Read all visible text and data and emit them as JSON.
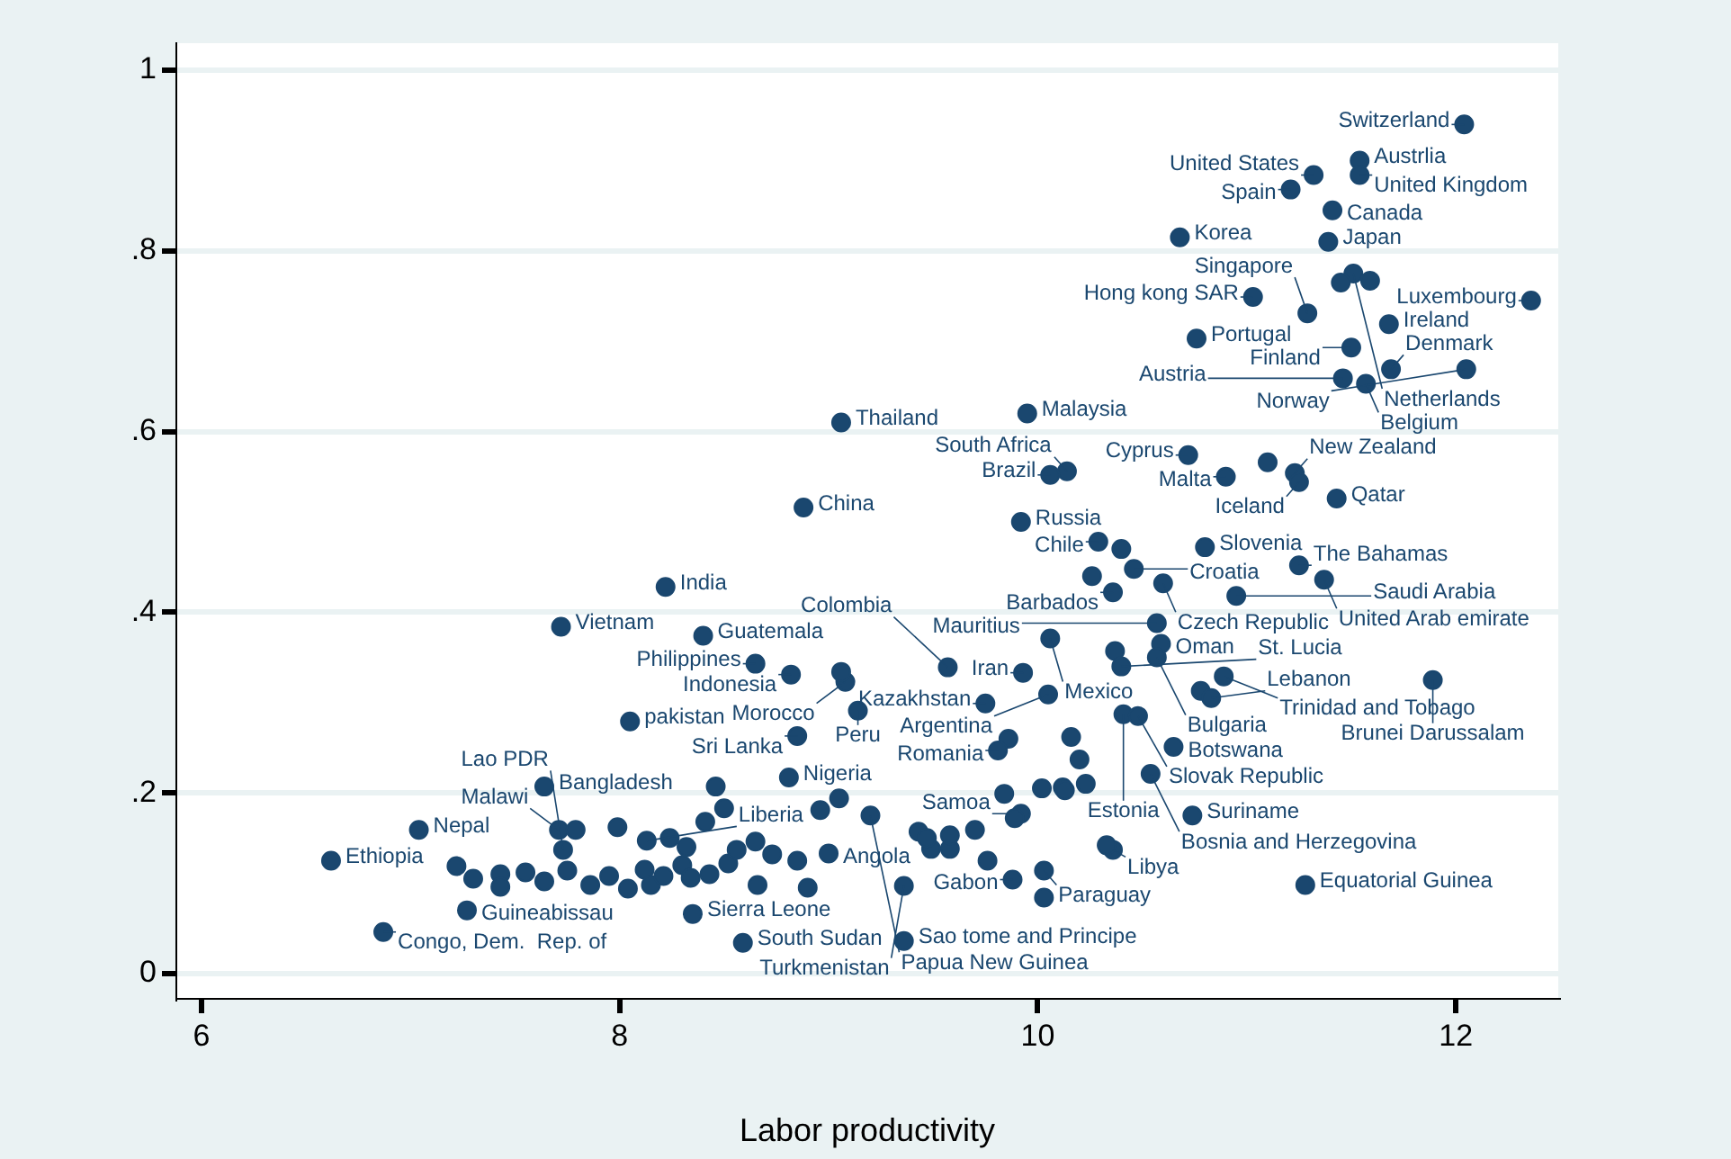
{
  "chart_data": {
    "type": "scatter",
    "xlabel": "Labor productivity",
    "marker": "circle",
    "grid": "y",
    "legend": false,
    "xlim": [
      5.88,
      12.49
    ],
    "ylim": [
      -0.028,
      1.03
    ],
    "xticks": [
      6,
      8,
      10,
      12
    ],
    "yticks": [
      0,
      {
        "value": 0.2,
        "label": ".2"
      },
      {
        "value": 0.4,
        "label": ".4"
      },
      {
        "value": 0.6,
        "label": ".6"
      },
      {
        "value": 0.8,
        "label": ".8"
      },
      1
    ],
    "series": [
      {
        "color": "#1a476f",
        "x": [
          12.04,
          11.54,
          11.32,
          11.54,
          11.21,
          11.41,
          10.68,
          11.39,
          11.51,
          11.45,
          11.59,
          11.03,
          11.29,
          11.68,
          12.36,
          10.76,
          11.5,
          11.69,
          12.05,
          11.46,
          11.57,
          9.95,
          9.06,
          8.88,
          10.72,
          11.1,
          11.23,
          11.25,
          10.9,
          10.14,
          10.06,
          11.43,
          9.92,
          8.22,
          7.72,
          8.4,
          10.29,
          10.4,
          10.8,
          10.46,
          10.26,
          10.36,
          10.6,
          10.95,
          11.25,
          11.37,
          10.57,
          10.59,
          10.06,
          10.37,
          10.57,
          10.4,
          10.89,
          11.89,
          10.78,
          10.83,
          10.05,
          9.93,
          9.57,
          10.41,
          10.48,
          9.75,
          9.86,
          9.81,
          10.16,
          10.65,
          10.54,
          10.74,
          10.36,
          10.03,
          9.88,
          11.28,
          9.36,
          8.59,
          8.35,
          7.27,
          6.87,
          6.62,
          7.04,
          7.64,
          8.46,
          8.81,
          8.05,
          8.85,
          9.14,
          8.65,
          8.82,
          9.08,
          9.06,
          8.5,
          7.71,
          7.79,
          8.13,
          7.73,
          9.0,
          9.2,
          9.7,
          9.92,
          9.36,
          8.9,
          7.3,
          7.22,
          7.43,
          7.43,
          7.55,
          7.64,
          7.75,
          7.86,
          7.95,
          8.04,
          8.12,
          8.15,
          8.21,
          8.3,
          8.34,
          8.43,
          8.52,
          8.56,
          8.66,
          8.73,
          8.85,
          8.32,
          8.24,
          7.99,
          8.41,
          8.65,
          8.96,
          9.05,
          9.43,
          9.58,
          9.76,
          9.84,
          10.02,
          10.12,
          10.2,
          10.23,
          10.13,
          10.33,
          9.58,
          9.89,
          10.03,
          9.49,
          9.47
        ],
        "values": [
          0.94,
          0.9,
          0.884,
          0.884,
          0.868,
          0.845,
          0.815,
          0.81,
          0.775,
          0.765,
          0.767,
          0.749,
          0.731,
          0.719,
          0.745,
          0.703,
          0.693,
          0.669,
          0.669,
          0.659,
          0.653,
          0.62,
          0.61,
          0.516,
          0.574,
          0.566,
          0.554,
          0.544,
          0.55,
          0.556,
          0.552,
          0.526,
          0.5,
          0.428,
          0.384,
          0.374,
          0.478,
          0.47,
          0.472,
          0.448,
          0.44,
          0.422,
          0.432,
          0.418,
          0.452,
          0.436,
          0.388,
          0.365,
          0.371,
          0.357,
          0.35,
          0.34,
          0.329,
          0.325,
          0.313,
          0.305,
          0.309,
          0.333,
          0.339,
          0.287,
          0.285,
          0.299,
          0.26,
          0.247,
          0.262,
          0.251,
          0.221,
          0.175,
          0.137,
          0.114,
          0.104,
          0.098,
          0.036,
          0.034,
          0.066,
          0.07,
          0.046,
          0.125,
          0.159,
          0.207,
          0.207,
          0.217,
          0.279,
          0.263,
          0.291,
          0.343,
          0.331,
          0.323,
          0.334,
          0.183,
          0.159,
          0.159,
          0.147,
          0.137,
          0.133,
          0.175,
          0.159,
          0.177,
          0.097,
          0.095,
          0.105,
          0.119,
          0.11,
          0.096,
          0.112,
          0.102,
          0.114,
          0.098,
          0.108,
          0.094,
          0.115,
          0.098,
          0.108,
          0.12,
          0.106,
          0.11,
          0.122,
          0.137,
          0.098,
          0.132,
          0.125,
          0.14,
          0.15,
          0.162,
          0.168,
          0.146,
          0.181,
          0.194,
          0.157,
          0.138,
          0.125,
          0.199,
          0.205,
          0.206,
          0.237,
          0.21,
          0.203,
          0.142,
          0.153,
          0.172,
          0.084,
          0.138,
          0.15
        ]
      }
    ],
    "annotations": [
      {
        "text": "Switzerland",
        "x": 12.04,
        "y": 0.94
      },
      {
        "text": "Austrlia",
        "x": 11.54,
        "y": 0.9
      },
      {
        "text": "United States",
        "x": 11.32,
        "y": 0.884
      },
      {
        "text": "United Kingdom",
        "x": 11.54,
        "y": 0.884
      },
      {
        "text": "Spain",
        "x": 11.21,
        "y": 0.868
      },
      {
        "text": "Canada",
        "x": 11.41,
        "y": 0.845
      },
      {
        "text": "Korea",
        "x": 10.68,
        "y": 0.815
      },
      {
        "text": "Japan",
        "x": 11.39,
        "y": 0.81
      },
      {
        "text": "Netherlands",
        "x": 11.51,
        "y": 0.775
      },
      {
        "text": "Hong kong SAR",
        "x": 11.03,
        "y": 0.749
      },
      {
        "text": "Singapore",
        "x": 11.29,
        "y": 0.731
      },
      {
        "text": "Ireland",
        "x": 11.68,
        "y": 0.719
      },
      {
        "text": "Luxembourg",
        "x": 12.36,
        "y": 0.745
      },
      {
        "text": "Portugal",
        "x": 10.76,
        "y": 0.703
      },
      {
        "text": "Finland",
        "x": 11.5,
        "y": 0.693
      },
      {
        "text": "Denmark",
        "x": 11.69,
        "y": 0.669
      },
      {
        "text": "Norway",
        "x": 12.05,
        "y": 0.669
      },
      {
        "text": "Austria",
        "x": 11.46,
        "y": 0.659
      },
      {
        "text": "Belgium",
        "x": 11.57,
        "y": 0.653
      },
      {
        "text": "Malaysia",
        "x": 9.95,
        "y": 0.62
      },
      {
        "text": "Thailand",
        "x": 9.06,
        "y": 0.61
      },
      {
        "text": "China",
        "x": 8.88,
        "y": 0.516
      },
      {
        "text": "Cyprus",
        "x": 10.72,
        "y": 0.574
      },
      {
        "text": "New Zealand",
        "x": 11.23,
        "y": 0.554
      },
      {
        "text": "Iceland",
        "x": 11.25,
        "y": 0.544
      },
      {
        "text": "Malta",
        "x": 10.9,
        "y": 0.55
      },
      {
        "text": "South Africa",
        "x": 10.14,
        "y": 0.556
      },
      {
        "text": "Brazil",
        "x": 10.06,
        "y": 0.552
      },
      {
        "text": "Qatar",
        "x": 11.43,
        "y": 0.526
      },
      {
        "text": "Russia",
        "x": 9.92,
        "y": 0.5
      },
      {
        "text": "India",
        "x": 8.22,
        "y": 0.428
      },
      {
        "text": "Vietnam",
        "x": 7.72,
        "y": 0.384
      },
      {
        "text": "Guatemala",
        "x": 8.4,
        "y": 0.374
      },
      {
        "text": "Chile",
        "x": 10.29,
        "y": 0.478
      },
      {
        "text": "Slovenia",
        "x": 10.8,
        "y": 0.472
      },
      {
        "text": "Croatia",
        "x": 10.46,
        "y": 0.448
      },
      {
        "text": "Barbados",
        "x": 10.36,
        "y": 0.422
      },
      {
        "text": "Czech Republic",
        "x": 10.6,
        "y": 0.432
      },
      {
        "text": "Saudi Arabia",
        "x": 10.95,
        "y": 0.418
      },
      {
        "text": "The Bahamas",
        "x": 11.25,
        "y": 0.452
      },
      {
        "text": "United Arab emirate",
        "x": 11.37,
        "y": 0.436
      },
      {
        "text": "Mauritius",
        "x": 10.57,
        "y": 0.388
      },
      {
        "text": "Oman",
        "x": 10.59,
        "y": 0.365
      },
      {
        "text": "Mexico",
        "x": 10.06,
        "y": 0.371
      },
      {
        "text": "Bulgaria",
        "x": 10.57,
        "y": 0.35
      },
      {
        "text": "St. Lucia",
        "x": 10.4,
        "y": 0.34
      },
      {
        "text": "Trinidad and Tobago",
        "x": 10.89,
        "y": 0.329
      },
      {
        "text": "Brunei Darussalam",
        "x": 11.89,
        "y": 0.325
      },
      {
        "text": "Lebanon",
        "x": 10.83,
        "y": 0.305
      },
      {
        "text": "Argentina",
        "x": 10.05,
        "y": 0.309
      },
      {
        "text": "Iran",
        "x": 9.93,
        "y": 0.333
      },
      {
        "text": "Colombia",
        "x": 9.57,
        "y": 0.339
      },
      {
        "text": "Estonia",
        "x": 10.41,
        "y": 0.287
      },
      {
        "text": "Slovak Republic",
        "x": 10.48,
        "y": 0.285
      },
      {
        "text": "Kazakhstan",
        "x": 9.75,
        "y": 0.299
      },
      {
        "text": "Romania",
        "x": 9.81,
        "y": 0.247
      },
      {
        "text": "Botswana",
        "x": 10.65,
        "y": 0.251
      },
      {
        "text": "Bosnia and Herzegovina",
        "x": 10.54,
        "y": 0.221
      },
      {
        "text": "Suriname",
        "x": 10.74,
        "y": 0.175
      },
      {
        "text": "Libya",
        "x": 10.36,
        "y": 0.137
      },
      {
        "text": "Paraguay",
        "x": 10.03,
        "y": 0.114
      },
      {
        "text": "Gabon",
        "x": 9.88,
        "y": 0.104
      },
      {
        "text": "Equatorial Guinea",
        "x": 11.28,
        "y": 0.098
      },
      {
        "text": "Sao tome and Principe",
        "x": 9.36,
        "y": 0.036
      },
      {
        "text": "South Sudan",
        "x": 8.59,
        "y": 0.034
      },
      {
        "text": "Sierra Leone",
        "x": 8.35,
        "y": 0.066
      },
      {
        "text": "Guineabissau",
        "x": 7.27,
        "y": 0.07
      },
      {
        "text": "Congo, Dem.  Rep. of",
        "x": 6.87,
        "y": 0.046
      },
      {
        "text": "Ethiopia",
        "x": 6.62,
        "y": 0.125
      },
      {
        "text": "Nepal",
        "x": 7.04,
        "y": 0.159
      },
      {
        "text": "Bangladesh",
        "x": 7.64,
        "y": 0.207
      },
      {
        "text": "Nigeria",
        "x": 8.81,
        "y": 0.217
      },
      {
        "text": "pakistan",
        "x": 8.05,
        "y": 0.279
      },
      {
        "text": "Sri Lanka",
        "x": 8.85,
        "y": 0.263
      },
      {
        "text": "Peru",
        "x": 9.14,
        "y": 0.291
      },
      {
        "text": "Philippines",
        "x": 8.65,
        "y": 0.343
      },
      {
        "text": "Indonesia",
        "x": 8.82,
        "y": 0.331
      },
      {
        "text": "Morocco",
        "x": 9.08,
        "y": 0.323
      },
      {
        "text": "Malawi",
        "x": 7.71,
        "y": 0.159
      },
      {
        "text": "Liberia",
        "x": 8.13,
        "y": 0.147
      },
      {
        "text": "Lao PDR",
        "x": 7.73,
        "y": 0.137
      },
      {
        "text": "Angola",
        "x": 9.0,
        "y": 0.133
      },
      {
        "text": "Papua New Guinea",
        "x": 9.2,
        "y": 0.175
      },
      {
        "text": "Samoa",
        "x": 9.92,
        "y": 0.177
      },
      {
        "text": "Turkmenistan",
        "x": 9.36,
        "y": 0.097
      }
    ]
  }
}
